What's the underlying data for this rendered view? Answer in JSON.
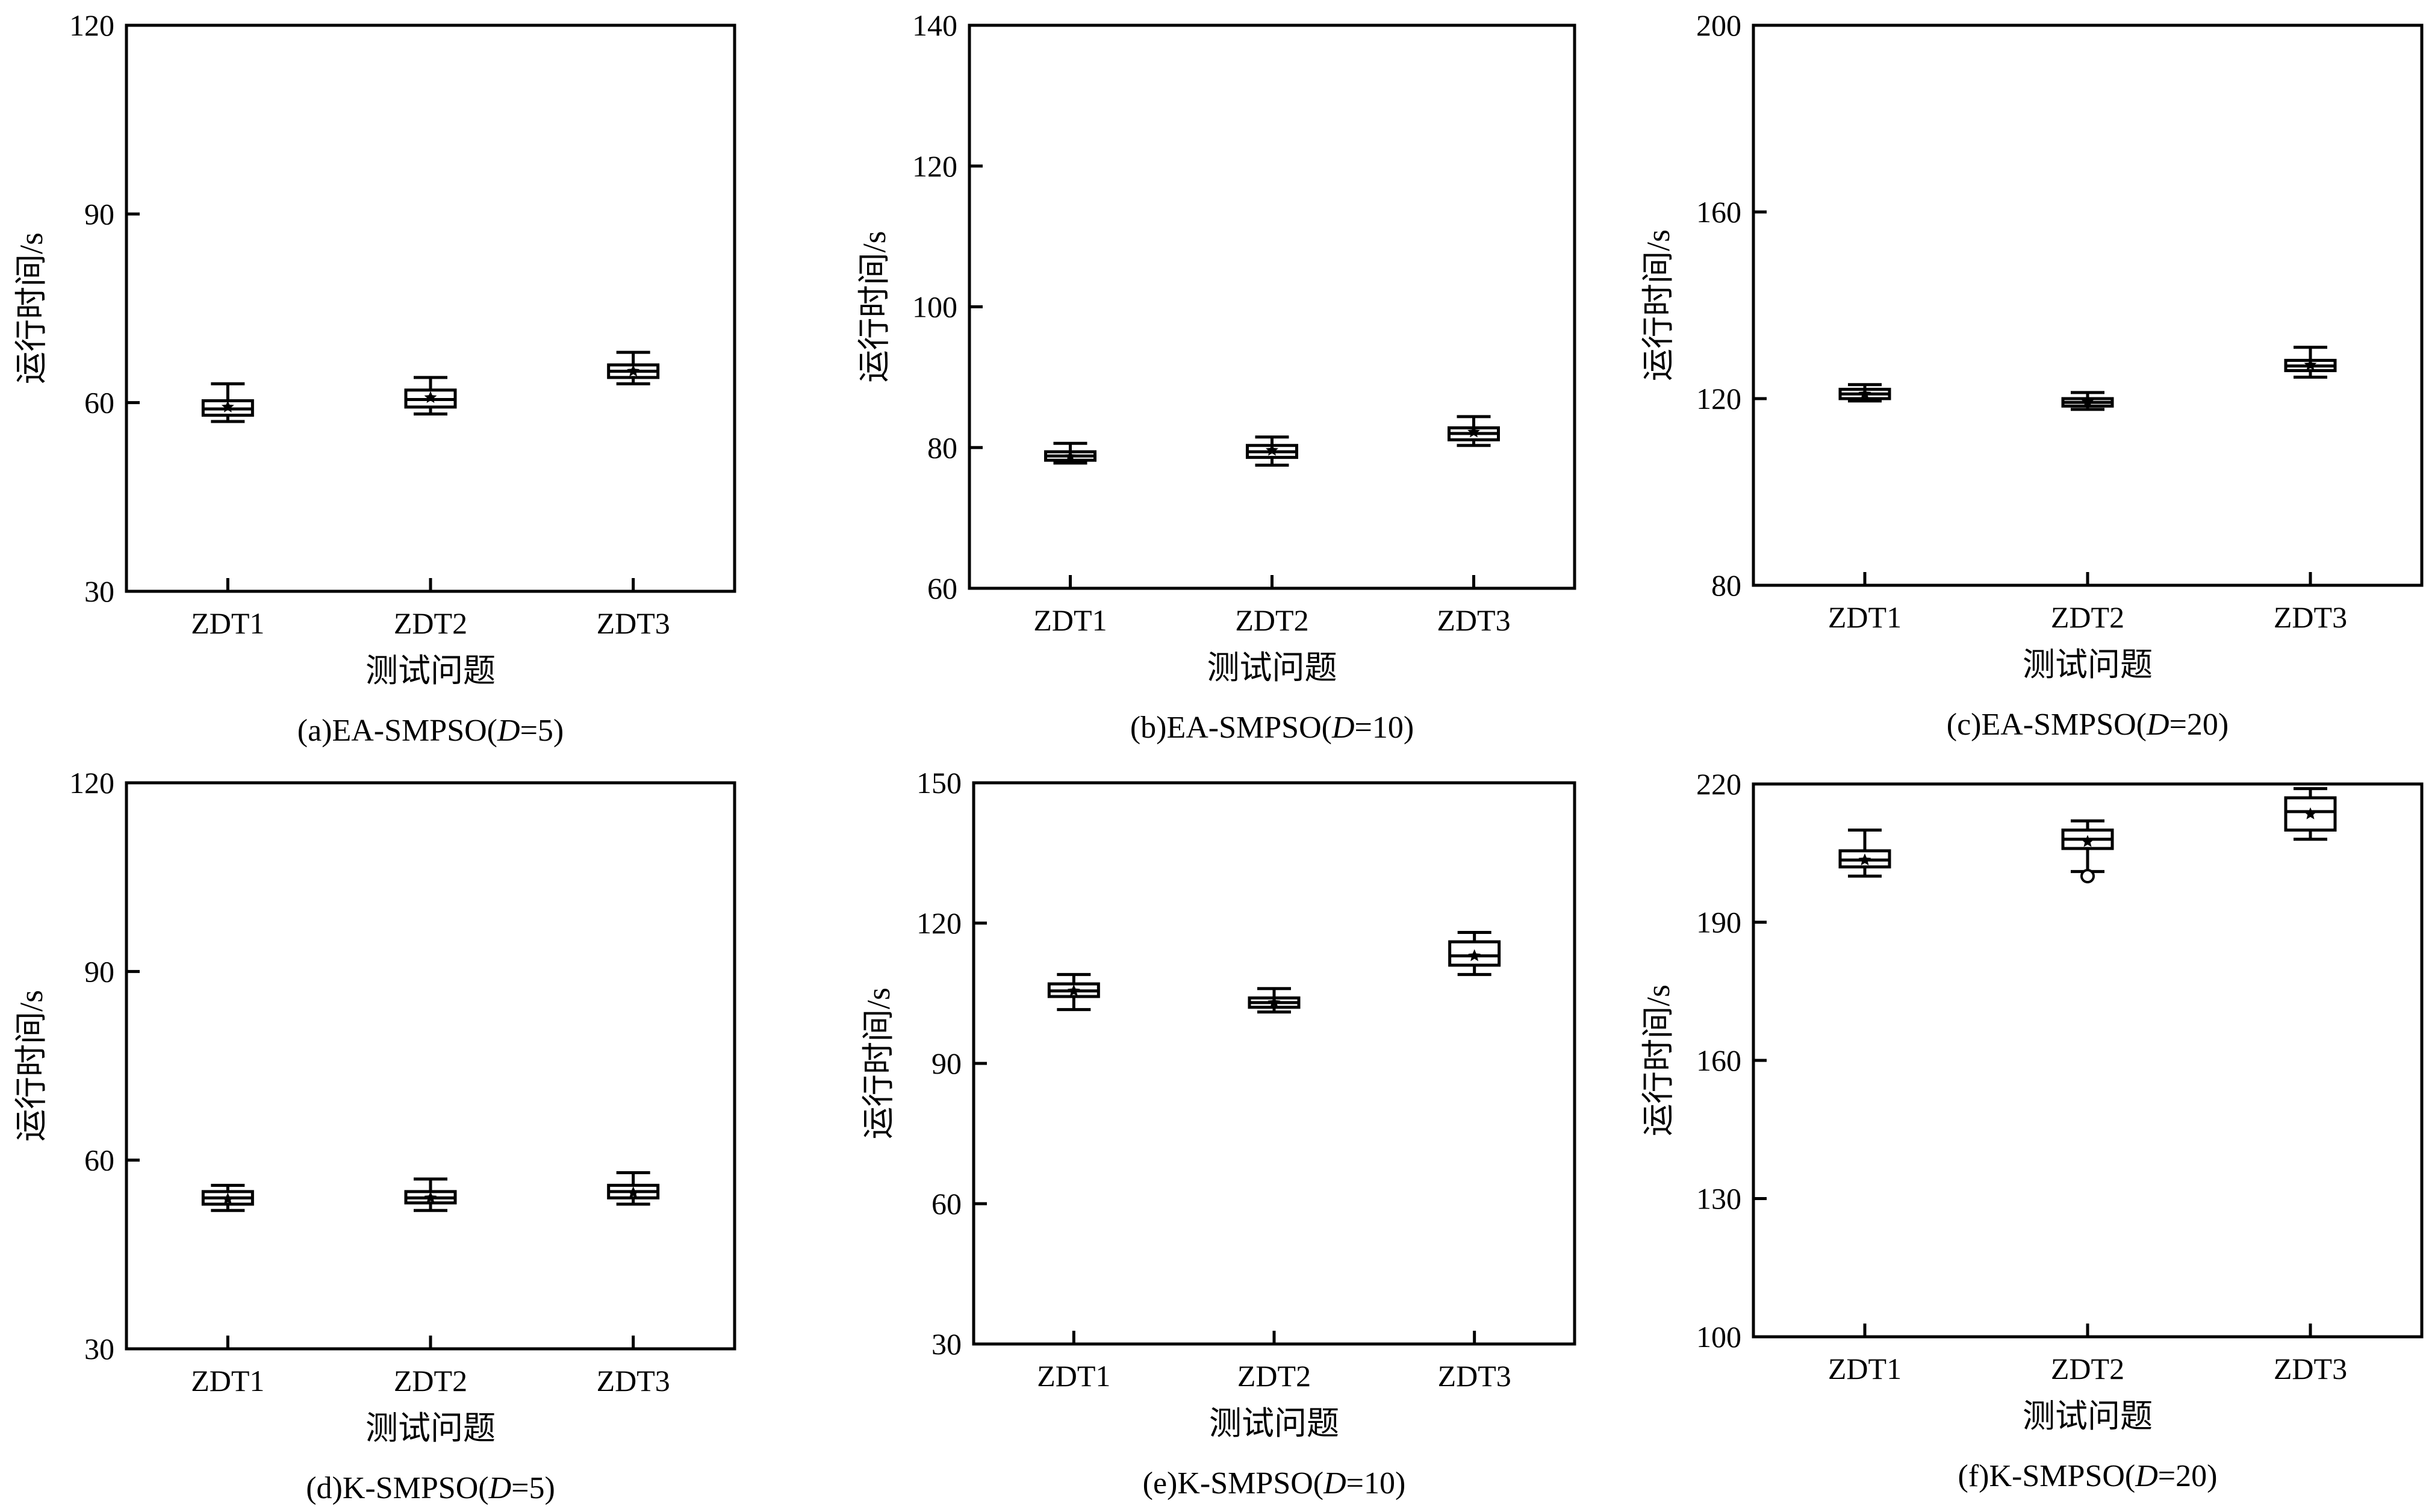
{
  "figure": {
    "panels": [
      {
        "caption_prefix": "(a)EA-SMPSO(",
        "caption_var": "D",
        "caption_suffix": "=5)"
      },
      {
        "caption_prefix": "(b)EA-SMPSO(",
        "caption_var": "D",
        "caption_suffix": "=10)"
      },
      {
        "caption_prefix": "(c)EA-SMPSO(",
        "caption_var": "D",
        "caption_suffix": "=20)"
      },
      {
        "caption_prefix": "(d)K-SMPSO(",
        "caption_var": "D",
        "caption_suffix": "=5)"
      },
      {
        "caption_prefix": "(e)K-SMPSO(",
        "caption_var": "D",
        "caption_suffix": "=10)"
      },
      {
        "caption_prefix": "(f)K-SMPSO(",
        "caption_var": "D",
        "caption_suffix": "=20)"
      }
    ]
  },
  "chart_data": [
    {
      "type": "box",
      "title": "(a)EA-SMPSO(D=5)",
      "xlabel": "测试问题",
      "ylabel": "运行时间/s",
      "categories": [
        "ZDT1",
        "ZDT2",
        "ZDT3"
      ],
      "ylim": [
        30,
        120
      ],
      "yticks": [
        30,
        60,
        90,
        120
      ],
      "boxes": [
        {
          "min": 57,
          "q1": 58,
          "median": 59,
          "q3": 60.3,
          "max": 63,
          "mean": 59.3,
          "outliers": []
        },
        {
          "min": 58.2,
          "q1": 59.3,
          "median": 60.5,
          "q3": 62,
          "max": 64,
          "mean": 60.8,
          "outliers": []
        },
        {
          "min": 63,
          "q1": 64,
          "median": 65,
          "q3": 66,
          "max": 68,
          "mean": 65,
          "outliers": []
        }
      ]
    },
    {
      "type": "box",
      "title": "(b)EA-SMPSO(D=10)",
      "xlabel": "测试问题",
      "ylabel": "运行时间/s",
      "categories": [
        "ZDT1",
        "ZDT2",
        "ZDT3"
      ],
      "ylim": [
        60,
        140
      ],
      "yticks": [
        60,
        80,
        100,
        120,
        140
      ],
      "boxes": [
        {
          "min": 77.8,
          "q1": 78.2,
          "median": 78.8,
          "q3": 79.4,
          "max": 80.6,
          "mean": 78.7,
          "outliers": []
        },
        {
          "min": 77.5,
          "q1": 78.6,
          "median": 79.4,
          "q3": 80.3,
          "max": 81.5,
          "mean": 79.6,
          "outliers": []
        },
        {
          "min": 80.3,
          "q1": 81.1,
          "median": 82,
          "q3": 82.8,
          "max": 84.4,
          "mean": 82.2,
          "outliers": []
        }
      ]
    },
    {
      "type": "box",
      "title": "(c)EA-SMPSO(D=20)",
      "xlabel": "测试问题",
      "ylabel": "运行时间/s",
      "categories": [
        "ZDT1",
        "ZDT2",
        "ZDT3"
      ],
      "ylim": [
        80,
        200
      ],
      "yticks": [
        80,
        120,
        160,
        200
      ],
      "boxes": [
        {
          "min": 119.5,
          "q1": 120,
          "median": 121,
          "q3": 122,
          "max": 123,
          "mean": 121,
          "outliers": []
        },
        {
          "min": 117.7,
          "q1": 118.4,
          "median": 119.2,
          "q3": 120,
          "max": 121.3,
          "mean": 119.3,
          "outliers": []
        },
        {
          "min": 124.6,
          "q1": 126,
          "median": 127,
          "q3": 128.2,
          "max": 131,
          "mean": 127.2,
          "outliers": []
        }
      ]
    },
    {
      "type": "box",
      "title": "(d)K-SMPSO(D=5)",
      "xlabel": "测试问题",
      "ylabel": "运行时间/s",
      "categories": [
        "ZDT1",
        "ZDT2",
        "ZDT3"
      ],
      "ylim": [
        30,
        120
      ],
      "yticks": [
        30,
        60,
        90,
        120
      ],
      "boxes": [
        {
          "min": 52,
          "q1": 53,
          "median": 54,
          "q3": 55,
          "max": 56,
          "mean": 53.8,
          "outliers": []
        },
        {
          "min": 52,
          "q1": 53.2,
          "median": 54,
          "q3": 55,
          "max": 57,
          "mean": 54,
          "outliers": []
        },
        {
          "min": 53,
          "q1": 54,
          "median": 55,
          "q3": 56,
          "max": 58,
          "mean": 54.8,
          "outliers": []
        }
      ]
    },
    {
      "type": "box",
      "title": "(e)K-SMPSO(D=10)",
      "xlabel": "测试问题",
      "ylabel": "运行时间/s",
      "categories": [
        "ZDT1",
        "ZDT2",
        "ZDT3"
      ],
      "ylim": [
        30,
        150
      ],
      "yticks": [
        30,
        60,
        90,
        120,
        150
      ],
      "boxes": [
        {
          "min": 101.5,
          "q1": 104.3,
          "median": 105.5,
          "q3": 107,
          "max": 109,
          "mean": 105.5,
          "outliers": []
        },
        {
          "min": 101,
          "q1": 102,
          "median": 103,
          "q3": 104,
          "max": 106,
          "mean": 103,
          "outliers": []
        },
        {
          "min": 109,
          "q1": 111,
          "median": 113,
          "q3": 116,
          "max": 118,
          "mean": 113,
          "outliers": []
        }
      ]
    },
    {
      "type": "box",
      "title": "(f)K-SMPSO(D=20)",
      "xlabel": "测试问题",
      "ylabel": "运行时间/s",
      "categories": [
        "ZDT1",
        "ZDT2",
        "ZDT3"
      ],
      "ylim": [
        100,
        220
      ],
      "yticks": [
        100,
        130,
        160,
        190,
        220
      ],
      "boxes": [
        {
          "min": 200,
          "q1": 202,
          "median": 203.5,
          "q3": 205.5,
          "max": 210,
          "mean": 203.5,
          "outliers": []
        },
        {
          "min": 201,
          "q1": 206,
          "median": 208,
          "q3": 210,
          "max": 212,
          "mean": 207.5,
          "outliers": [
            200
          ]
        },
        {
          "min": 208,
          "q1": 210,
          "median": 214,
          "q3": 217,
          "max": 219,
          "mean": 213.5,
          "outliers": []
        }
      ]
    }
  ]
}
